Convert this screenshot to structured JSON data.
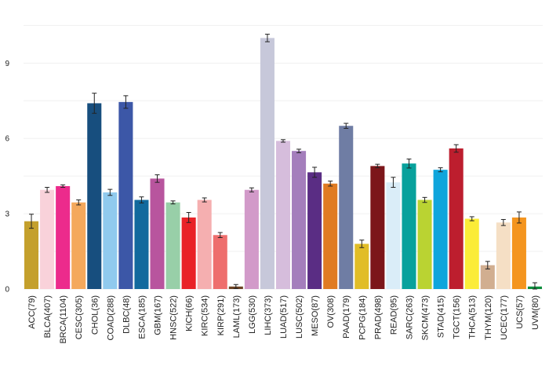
{
  "chart_data": {
    "type": "bar",
    "title": "",
    "xlabel": "",
    "ylabel": "",
    "ylim": [
      0,
      11.2
    ],
    "yticks": [
      0,
      3,
      6,
      9
    ],
    "grid": "horizontal",
    "error_bars": true,
    "categories": [
      "ACC(79)",
      "BLCA(407)",
      "BRCA(1104)",
      "CESC(305)",
      "CHOL(36)",
      "COAD(288)",
      "DLBC(48)",
      "ESCA(185)",
      "GBM(167)",
      "HNSC(522)",
      "KICH(66)",
      "KIRC(534)",
      "KIRP(291)",
      "LAML(173)",
      "LGG(530)",
      "LIHC(373)",
      "LUAD(517)",
      "LUSC(502)",
      "MESO(87)",
      "OV(308)",
      "PAAD(179)",
      "PCPG(184)",
      "PRAD(498)",
      "READ(95)",
      "SARC(263)",
      "SKCM(473)",
      "STAD(415)",
      "TGCT(156)",
      "THCA(513)",
      "THYM(120)",
      "UCEC(177)",
      "UCS(57)",
      "UVM(80)"
    ],
    "values": [
      2.7,
      3.95,
      4.1,
      3.45,
      7.4,
      3.85,
      7.45,
      3.55,
      4.4,
      3.45,
      2.85,
      3.55,
      2.15,
      0.1,
      3.95,
      10.0,
      5.9,
      5.5,
      4.65,
      4.2,
      6.5,
      1.8,
      4.9,
      4.25,
      5.0,
      3.55,
      4.75,
      5.6,
      2.8,
      0.95,
      2.65,
      2.85,
      0.1
    ],
    "errors": [
      0.28,
      0.1,
      0.05,
      0.1,
      0.4,
      0.12,
      0.25,
      0.12,
      0.15,
      0.06,
      0.2,
      0.08,
      0.1,
      0.08,
      0.08,
      0.15,
      0.05,
      0.07,
      0.2,
      0.1,
      0.1,
      0.15,
      0.07,
      0.2,
      0.18,
      0.1,
      0.08,
      0.15,
      0.08,
      0.15,
      0.12,
      0.22,
      0.15
    ],
    "colors": [
      "#C4A02C",
      "#F9D2DA",
      "#EC2B8C",
      "#F4A85C",
      "#174E7E",
      "#90CAEE",
      "#3C57A7",
      "#12699D",
      "#B8559E",
      "#98CFA8",
      "#E92227",
      "#F5AFB0",
      "#EE6E6D",
      "#6C4223",
      "#D29AC9",
      "#C7C8DA",
      "#D6BDDC",
      "#A47EBC",
      "#5A2D84",
      "#E07B22",
      "#6F7DA4",
      "#E1BD27",
      "#7C161A",
      "#DAEDF8",
      "#08A19C",
      "#BAD332",
      "#0FA5DC",
      "#BD1E2E",
      "#FBEC38",
      "#D1AE90",
      "#F5DFC5",
      "#F4951F",
      "#0E8E3D"
    ]
  }
}
